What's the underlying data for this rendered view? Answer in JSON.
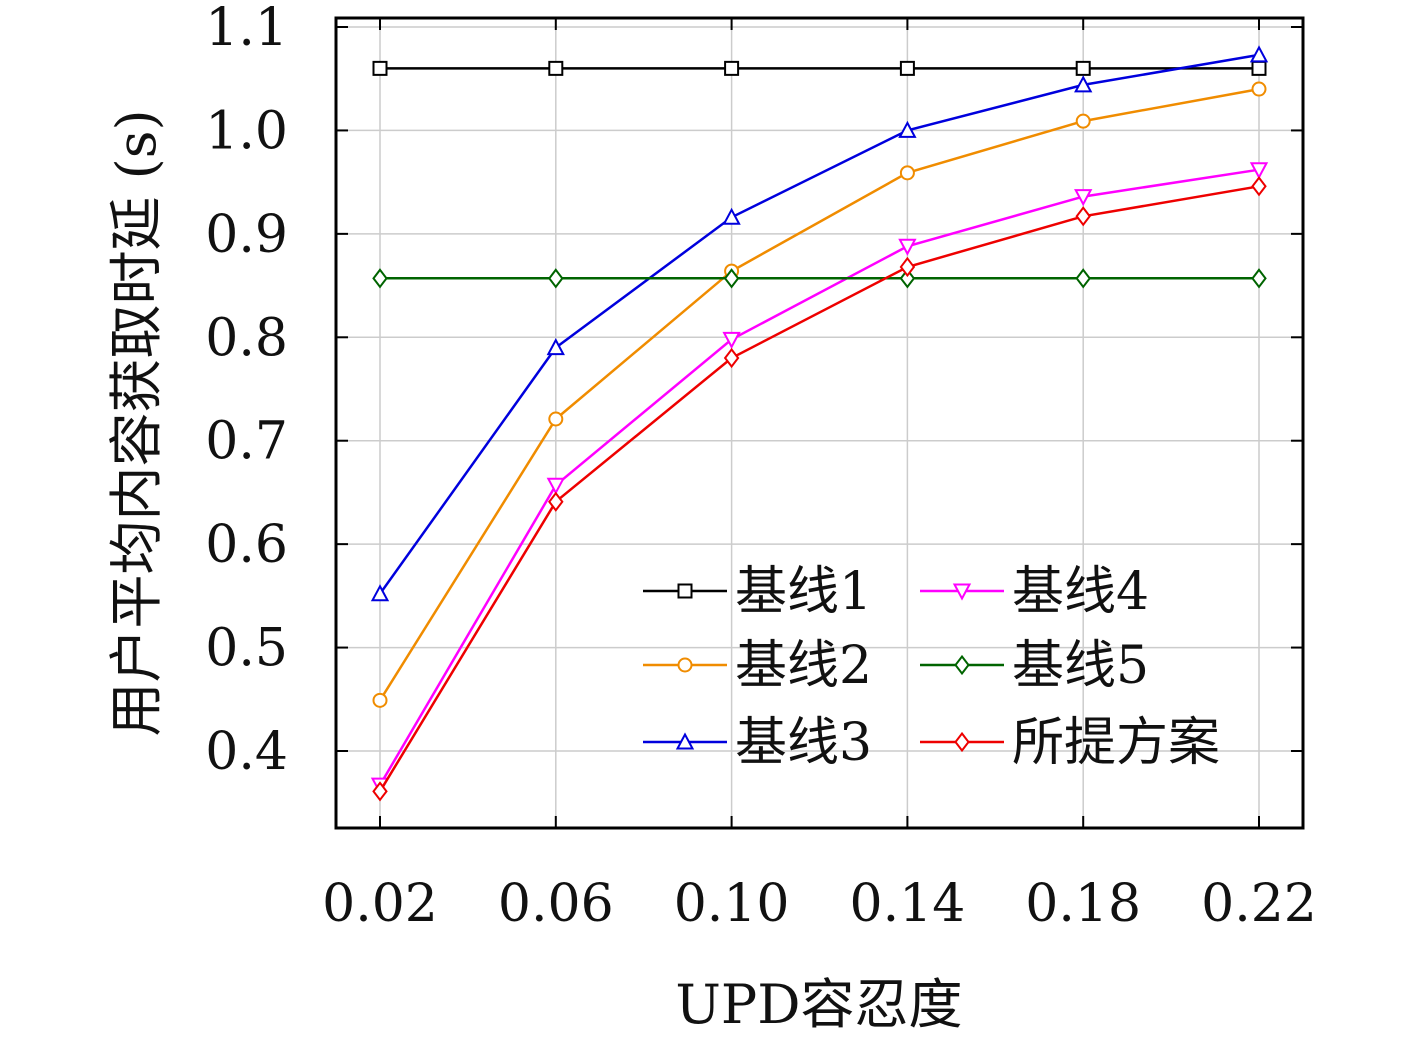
{
  "chart_data": {
    "type": "line",
    "xlabel": "UPD容忍度",
    "ylabel": "用户平均内容获取时延 (s)",
    "x": [
      0.02,
      0.06,
      0.1,
      0.14,
      0.18,
      0.22
    ],
    "x_tick_labels": [
      "0.02",
      "0.06",
      "0.10",
      "0.14",
      "0.18",
      "0.22"
    ],
    "y_ticks": [
      0.4,
      0.5,
      0.6,
      0.7,
      0.8,
      0.9,
      1.0,
      1.1
    ],
    "y_tick_labels": [
      "0.4",
      "0.5",
      "0.6",
      "0.7",
      "0.8",
      "0.9",
      "1.0",
      "1.1"
    ],
    "xlim": [
      0.01,
      0.23
    ],
    "ylim": [
      0.33,
      1.11
    ],
    "grid": true,
    "legend_position": "lower-right",
    "legend_columns": 2,
    "series": [
      {
        "name": "基线1",
        "color": "#000000",
        "marker": "square",
        "values": [
          1.06,
          1.06,
          1.06,
          1.06,
          1.06,
          1.06
        ]
      },
      {
        "name": "基线2",
        "color": "#f08c00",
        "marker": "circle",
        "values": [
          0.449,
          0.721,
          0.864,
          0.959,
          1.009,
          1.04
        ]
      },
      {
        "name": "基线3",
        "color": "#0000dd",
        "marker": "triangle-up",
        "values": [
          0.552,
          0.79,
          0.916,
          1.0,
          1.044,
          1.073
        ]
      },
      {
        "name": "基线4",
        "color": "#ff00ff",
        "marker": "triangle-down",
        "values": [
          0.367,
          0.657,
          0.798,
          0.888,
          0.936,
          0.962
        ]
      },
      {
        "name": "基线5",
        "color": "#006400",
        "marker": "diamond",
        "values": [
          0.857,
          0.857,
          0.857,
          0.857,
          0.857,
          0.857
        ]
      },
      {
        "name": "所提方案",
        "color": "#ee0000",
        "marker": "diamond",
        "values": [
          0.361,
          0.641,
          0.78,
          0.868,
          0.917,
          0.946
        ]
      }
    ]
  }
}
